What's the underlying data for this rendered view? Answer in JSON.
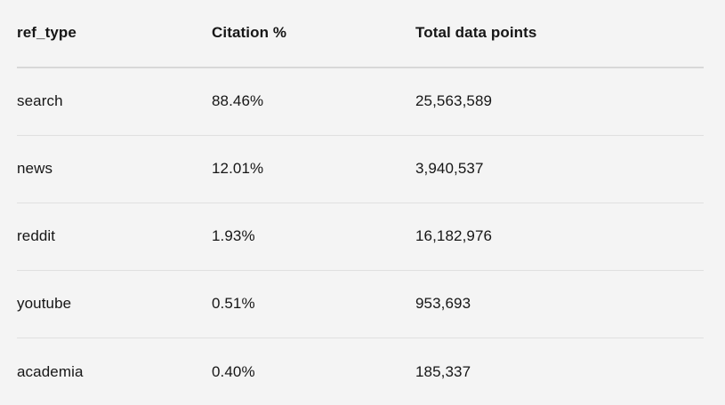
{
  "chart_data": {
    "type": "table",
    "title": "",
    "columns": [
      "ref_type",
      "Citation %",
      "Total data points"
    ],
    "rows": [
      [
        "search",
        "88.46%",
        "25,563,589"
      ],
      [
        "news",
        "12.01%",
        "3,940,537"
      ],
      [
        "reddit",
        "1.93%",
        "16,182,976"
      ],
      [
        "youtube",
        "0.51%",
        "953,693"
      ],
      [
        "academia",
        "0.40%",
        "185,337"
      ]
    ]
  },
  "colors": {
    "background": "#f4f4f4",
    "text": "#161616",
    "header_divider": "#d8d8d8",
    "row_divider": "#e0e0e0"
  }
}
